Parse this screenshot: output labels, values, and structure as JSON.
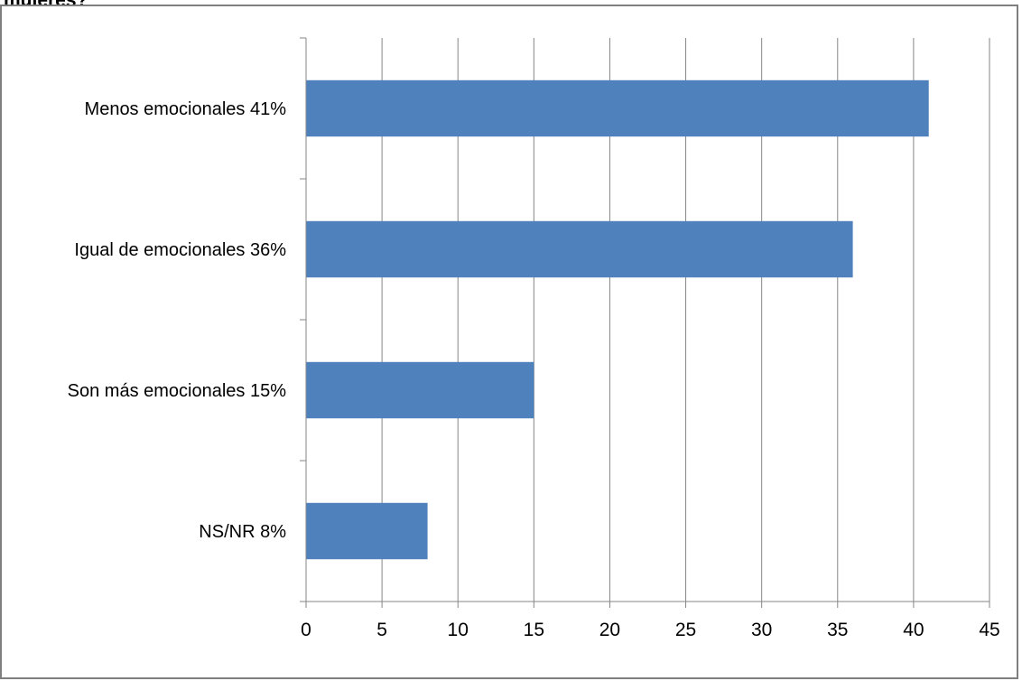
{
  "heading": "mujeres?",
  "chart_data": {
    "type": "bar",
    "orientation": "horizontal",
    "categories": [
      "Menos emocionales  41%",
      "Igual de emocionales  36%",
      "Son más emocionales  15%",
      "NS/NR  8%"
    ],
    "values": [
      41,
      36,
      15,
      8
    ],
    "xlim": [
      0,
      45
    ],
    "xticks": [
      0,
      5,
      10,
      15,
      20,
      25,
      30,
      35,
      40,
      45
    ],
    "title": "",
    "xlabel": "",
    "ylabel": "",
    "grid": "vertical",
    "bar_color": "#4f81bd",
    "grid_color": "#868686"
  }
}
